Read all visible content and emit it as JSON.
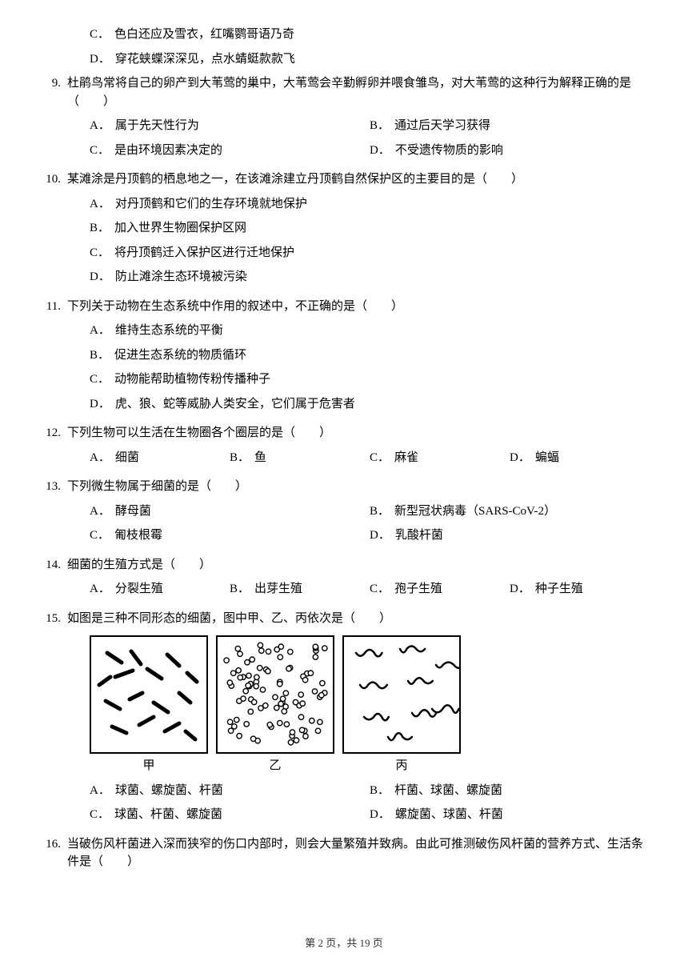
{
  "leadingOptions": [
    {
      "letter": "C．",
      "text": "色白还应及雪衣，红嘴鹦哥语乃奇"
    },
    {
      "letter": "D．",
      "text": "穿花蛱蝶深深见，点水蜻蜓款款飞"
    }
  ],
  "questions": [
    {
      "num": "9.",
      "stem": "杜鹃鸟常将自己的卵产到大苇莺的巢中，大苇莺会辛勤孵卵并喂食雏鸟，对大苇莺的这种行为解释正确的是（　　）",
      "layout": "half",
      "options": [
        {
          "letter": "A．",
          "text": "属于先天性行为"
        },
        {
          "letter": "B．",
          "text": "通过后天学习获得"
        },
        {
          "letter": "C．",
          "text": "是由环境因素决定的"
        },
        {
          "letter": "D．",
          "text": "不受遗传物质的影响"
        }
      ]
    },
    {
      "num": "10.",
      "stem": "某滩涂是丹顶鹤的栖息地之一，在该滩涂建立丹顶鹤自然保护区的主要目的是（　　）",
      "layout": "full",
      "options": [
        {
          "letter": "A．",
          "text": "对丹顶鹤和它们的生存环境就地保护"
        },
        {
          "letter": "B．",
          "text": "加入世界生物圈保护区网"
        },
        {
          "letter": "C．",
          "text": "将丹顶鹤迁入保护区进行迁地保护"
        },
        {
          "letter": "D．",
          "text": "防止滩涂生态环境被污染"
        }
      ]
    },
    {
      "num": "11.",
      "stem": "下列关于动物在生态系统中作用的叙述中，不正确的是（　　）",
      "layout": "full",
      "options": [
        {
          "letter": "A．",
          "text": "维持生态系统的平衡"
        },
        {
          "letter": "B．",
          "text": "促进生态系统的物质循环"
        },
        {
          "letter": "C．",
          "text": "动物能帮助植物传粉传播种子"
        },
        {
          "letter": "D．",
          "text": "虎、狼、蛇等威胁人类安全，它们属于危害者"
        }
      ]
    },
    {
      "num": "12.",
      "stem": "下列生物可以生活在生物圈各个圈层的是（　　）",
      "layout": "quart",
      "options": [
        {
          "letter": "A．",
          "text": "细菌"
        },
        {
          "letter": "B．",
          "text": "鱼"
        },
        {
          "letter": "C．",
          "text": "麻雀"
        },
        {
          "letter": "D．",
          "text": "蝙蝠"
        }
      ]
    },
    {
      "num": "13.",
      "stem": "下列微生物属于细菌的是（　　）",
      "layout": "half",
      "options": [
        {
          "letter": "A．",
          "text": "酵母菌"
        },
        {
          "letter": "B．",
          "text": "新型冠状病毒（SARS-CoV-2）"
        },
        {
          "letter": "C．",
          "text": "匍枝根霉"
        },
        {
          "letter": "D．",
          "text": "乳酸杆菌"
        }
      ]
    },
    {
      "num": "14.",
      "stem": "细菌的生殖方式是（　　）",
      "layout": "quart",
      "options": [
        {
          "letter": "A．",
          "text": "分裂生殖"
        },
        {
          "letter": "B．",
          "text": "出芽生殖"
        },
        {
          "letter": "C．",
          "text": "孢子生殖"
        },
        {
          "letter": "D．",
          "text": "种子生殖"
        }
      ]
    },
    {
      "num": "15.",
      "stem": "如图是三种不同形态的细菌，图中甲、乙、丙依次是（　　）",
      "hasFigure": true,
      "figure": {
        "panels": [
          {
            "label": "甲",
            "type": "rods"
          },
          {
            "label": "乙",
            "type": "cocci"
          },
          {
            "label": "丙",
            "type": "spirals"
          }
        ],
        "border_color": "#000000",
        "background": "#ffffff"
      },
      "layout": "half",
      "options": [
        {
          "letter": "A．",
          "text": "球菌、螺旋菌、杆菌"
        },
        {
          "letter": "B．",
          "text": "杆菌、球菌、螺旋菌"
        },
        {
          "letter": "C．",
          "text": "球菌、杆菌、螺旋菌"
        },
        {
          "letter": "D．",
          "text": "螺旋菌、球菌、杆菌"
        }
      ]
    },
    {
      "num": "16.",
      "stem": "当破伤风杆菌进入深而狭窄的伤口内部时，则会大量繁殖并致病。由此可推测破伤风杆菌的营养方式、生活条件是（　　）",
      "layout": "none",
      "options": []
    }
  ],
  "footer": "第 2 页，共 19 页"
}
